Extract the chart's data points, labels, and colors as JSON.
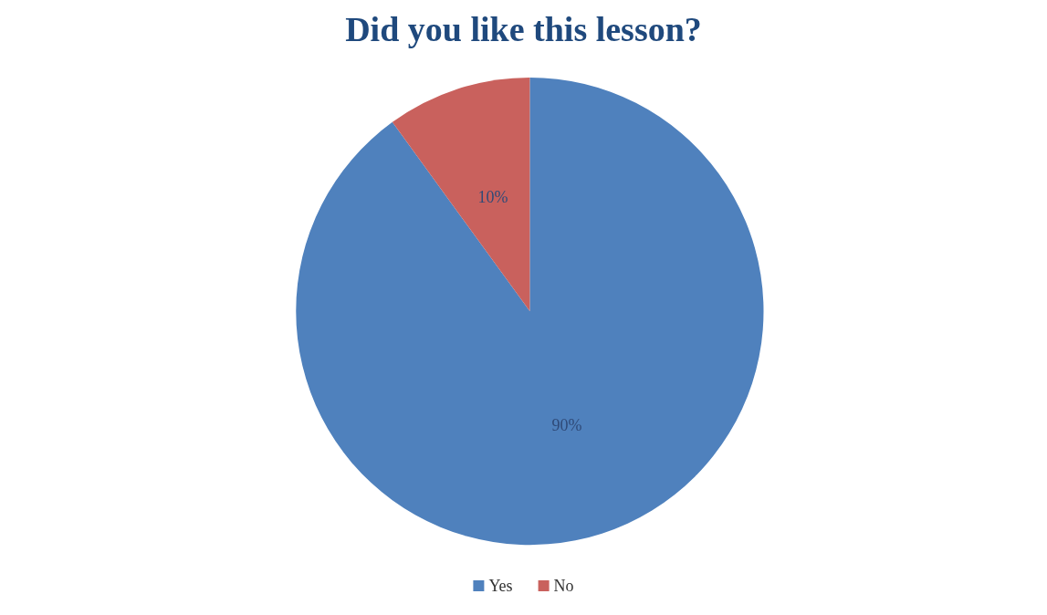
{
  "chart_data": {
    "type": "pie",
    "title": "Did you like this lesson?",
    "categories": [
      "Yes",
      "No"
    ],
    "values": [
      90,
      10
    ],
    "colors": [
      "#4f81bd",
      "#c9615d"
    ],
    "value_labels": [
      "90%",
      "10%"
    ],
    "legend": "bottom"
  }
}
